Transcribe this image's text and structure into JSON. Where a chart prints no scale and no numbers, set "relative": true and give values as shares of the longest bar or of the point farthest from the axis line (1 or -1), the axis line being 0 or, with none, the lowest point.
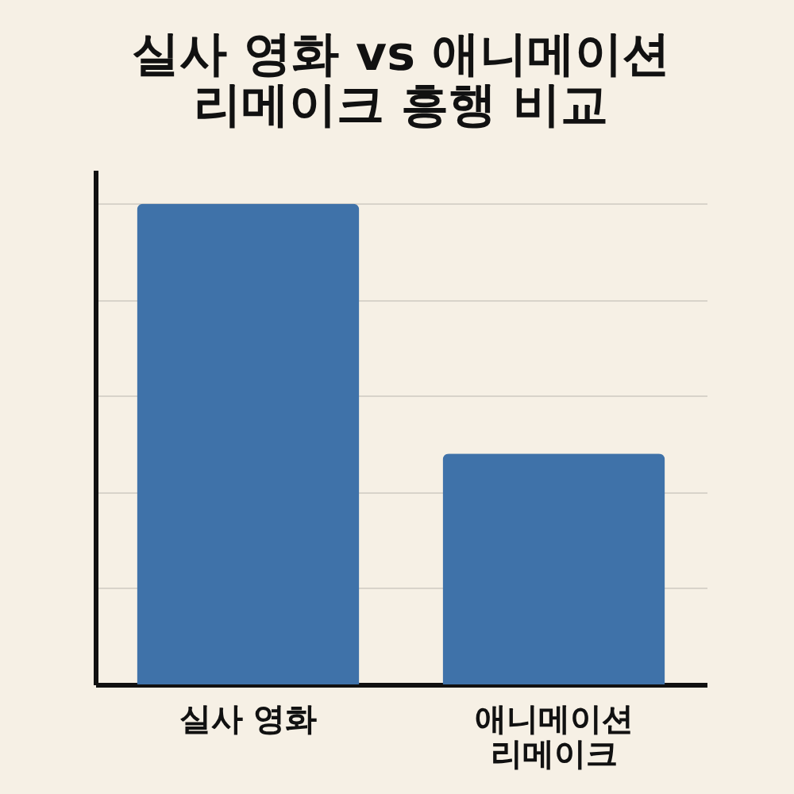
{
  "chart_data": {
    "type": "bar",
    "title": "실사 영화 vs 애니메이션 리메이크 흥행 비교",
    "categories": [
      "실사 영화",
      "애니메이션 리메이크"
    ],
    "values": [
      1,
      0.48
    ],
    "color": "#3f72a9",
    "relative": true,
    "grid": "y"
  }
}
